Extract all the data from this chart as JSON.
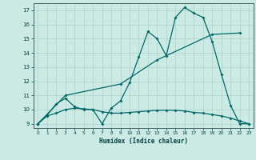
{
  "xlabel": "Humidex (Indice chaleur)",
  "bg_color": "#cceae4",
  "grid_color": "#aad4cc",
  "line_color": "#006868",
  "xlim": [
    -0.5,
    23.5
  ],
  "ylim": [
    8.7,
    17.5
  ],
  "xticks": [
    0,
    1,
    2,
    3,
    4,
    5,
    6,
    7,
    8,
    9,
    10,
    11,
    12,
    13,
    14,
    15,
    16,
    17,
    18,
    19,
    20,
    21,
    22,
    23
  ],
  "yticks": [
    9,
    10,
    11,
    12,
    13,
    14,
    15,
    16,
    17
  ],
  "line1_x": [
    0,
    1,
    2,
    3,
    4,
    5,
    6,
    7,
    8,
    9,
    10,
    11,
    12,
    13,
    14,
    15,
    16,
    17,
    18,
    19,
    20,
    21,
    22,
    23
  ],
  "line1_y": [
    9.0,
    9.6,
    10.4,
    10.8,
    10.2,
    10.0,
    10.0,
    9.0,
    10.1,
    10.6,
    11.9,
    13.7,
    15.5,
    15.0,
    13.8,
    16.5,
    17.2,
    16.8,
    16.5,
    14.8,
    12.5,
    10.3,
    9.0,
    9.0
  ],
  "line2_x": [
    0,
    3,
    9,
    13,
    19,
    22
  ],
  "line2_y": [
    9.0,
    11.0,
    11.8,
    13.5,
    15.3,
    15.4
  ],
  "line3_x": [
    0,
    1,
    2,
    3,
    4,
    5,
    6,
    7,
    8,
    9,
    10,
    11,
    12,
    13,
    14,
    15,
    16,
    17,
    18,
    19,
    20,
    21,
    22,
    23
  ],
  "line3_y": [
    9.0,
    9.55,
    9.75,
    10.0,
    10.1,
    10.05,
    10.0,
    9.85,
    9.75,
    9.75,
    9.8,
    9.85,
    9.9,
    9.95,
    9.95,
    9.95,
    9.9,
    9.8,
    9.75,
    9.65,
    9.55,
    9.4,
    9.2,
    9.0
  ]
}
